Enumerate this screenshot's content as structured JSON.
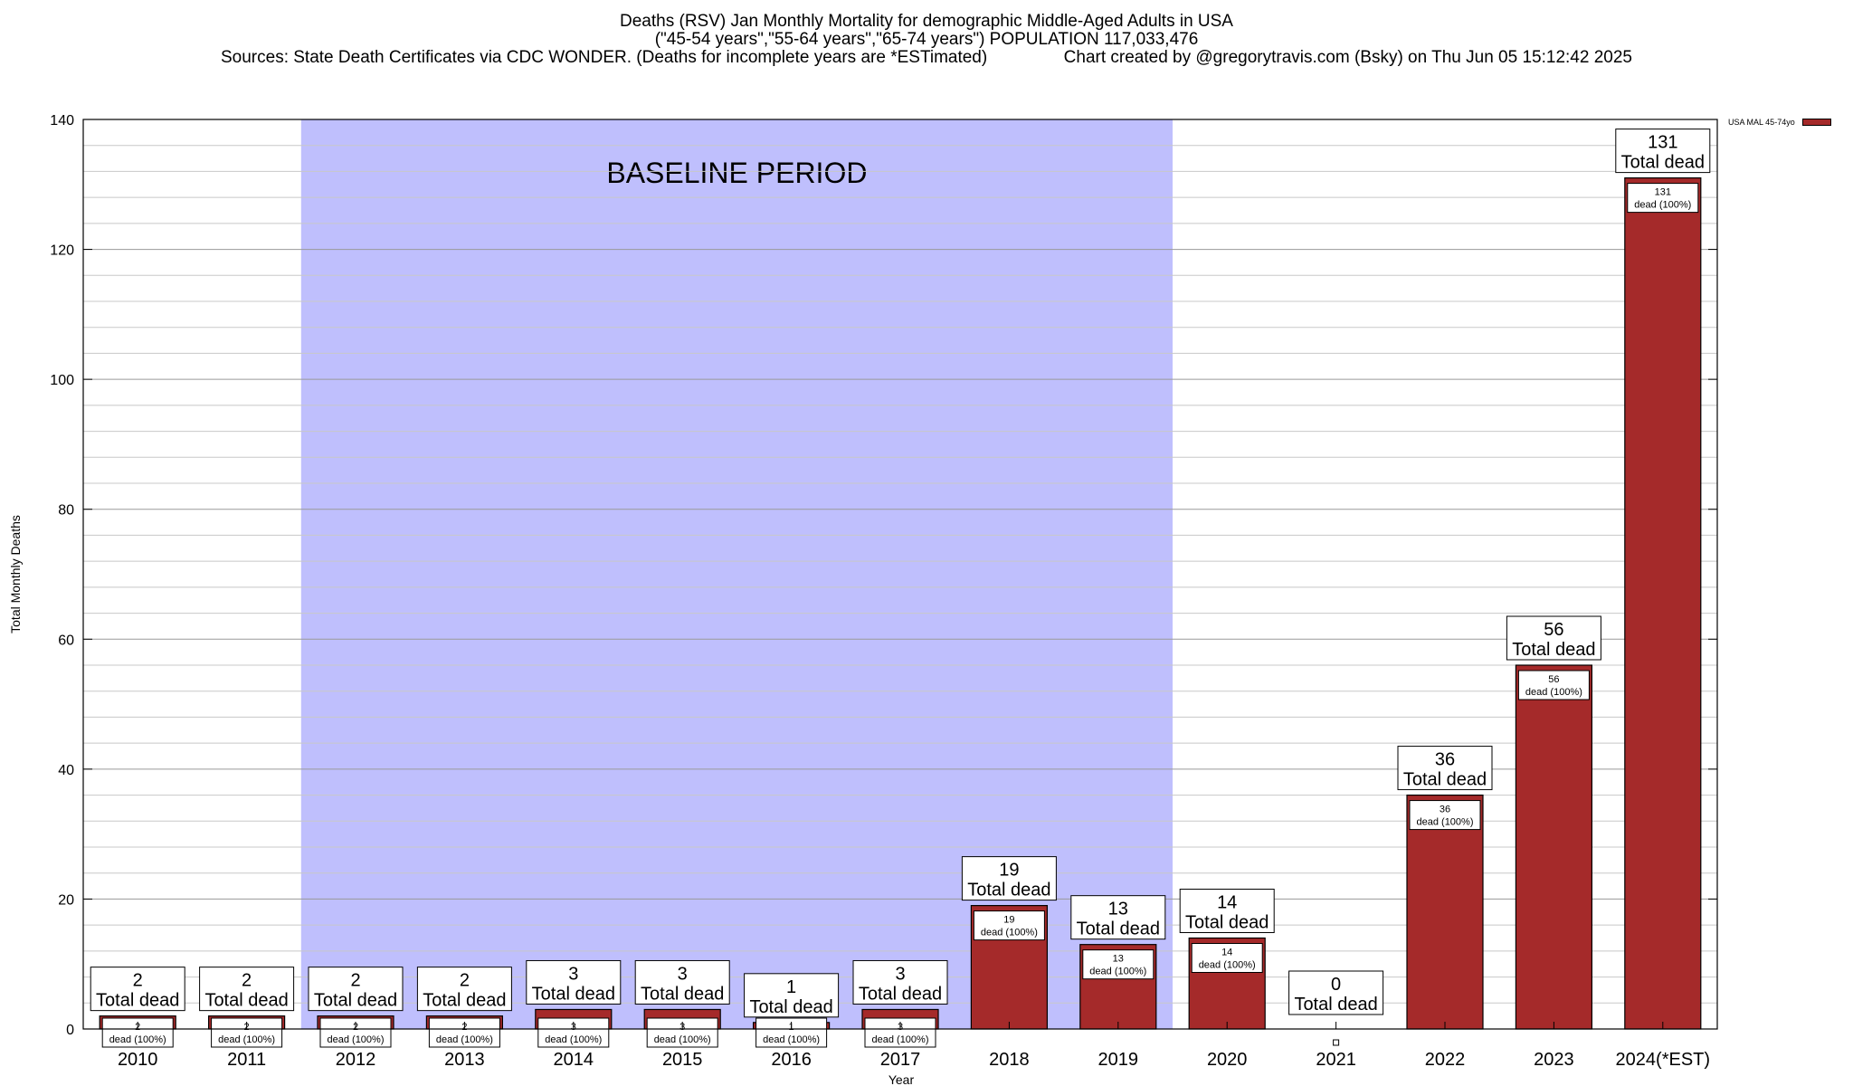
{
  "header": {
    "line1": "Deaths (RSV) Jan Monthly Mortality for demographic Middle-Aged Adults in USA",
    "line2": "(\"45-54 years\",\"55-64 years\",\"65-74 years\") POPULATION 117,033,476",
    "line3": "Sources: State Death Certificates via CDC WONDER. (Deaths for incomplete years are *ESTimated)                Chart created by @gregorytravis.com (Bsky) on Thu Jun 05 15:12:42 2025"
  },
  "legend": {
    "label": "USA MAL 45-74yo",
    "color": "#a52a2a"
  },
  "chart_data": {
    "type": "bar",
    "categories": [
      "2010",
      "2011",
      "2012",
      "2013",
      "2014",
      "2015",
      "2016",
      "2017",
      "2018",
      "2019",
      "2020",
      "2021",
      "2022",
      "2023",
      "2024(*EST)"
    ],
    "series": [
      {
        "name": "USA MAL 45-74yo",
        "values": [
          2,
          2,
          2,
          2,
          3,
          3,
          1,
          3,
          19,
          13,
          14,
          0,
          36,
          56,
          131
        ]
      }
    ],
    "bar_label_suffix": "Total dead",
    "inner_label_suffix": "dead (100%)",
    "xlabel": "Year",
    "ylabel": "Total Monthly Deaths",
    "ylim": [
      0,
      140
    ],
    "yticks": [
      0,
      20,
      40,
      60,
      80,
      100,
      120,
      140
    ],
    "grid": true,
    "baseline": {
      "label": "BASELINE PERIOD",
      "from": "2012",
      "to": "2019",
      "color": "#bfbffd"
    },
    "bar_color": "#a52a2a",
    "legend_position": "top-right outside"
  }
}
